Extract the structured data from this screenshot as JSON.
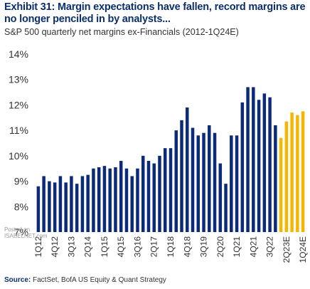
{
  "title": "Exhibit 31: Margin expectations have fallen, record margins are no longer penciled in by analysts...",
  "subtitle": "S&P 500 quarterly net margins ex-Financials (2012-1Q24E)",
  "source_label": "Source:",
  "source_text": "FactSet, BofA US Equity & Quant Strategy",
  "watermark": {
    "line1": "Posted on",
    "line2": "ISABELNET.com"
  },
  "colors": {
    "actual": "#0b2a7a",
    "estimate": "#f7b500",
    "title": "#0b2f6b"
  },
  "chart_data": {
    "type": "bar",
    "title": "S&P 500 quarterly net margins ex-Financials (2012-1Q24E)",
    "ylim": [
      7,
      14
    ],
    "yticks": [
      "7%",
      "8%",
      "9%",
      "10%",
      "11%",
      "12%",
      "13%",
      "14%"
    ],
    "ytick_values": [
      7,
      8,
      9,
      10,
      11,
      12,
      13,
      14
    ],
    "x_tick_labels": [
      "1Q12",
      "4Q12",
      "3Q13",
      "2Q14",
      "1Q15",
      "4Q15",
      "3Q16",
      "2Q17",
      "1Q18",
      "4Q18",
      "3Q19",
      "2Q20",
      "1Q21",
      "4Q21",
      "3Q22",
      "2Q23E",
      "1Q24E"
    ],
    "categories": [
      "1Q12",
      "2Q12",
      "3Q12",
      "4Q12",
      "1Q13",
      "2Q13",
      "3Q13",
      "4Q13",
      "1Q14",
      "2Q14",
      "3Q14",
      "4Q14",
      "1Q15",
      "2Q15",
      "3Q15",
      "4Q15",
      "1Q16",
      "2Q16",
      "3Q16",
      "4Q16",
      "1Q17",
      "2Q17",
      "3Q17",
      "4Q17",
      "1Q18",
      "2Q18",
      "3Q18",
      "4Q18",
      "1Q19",
      "2Q19",
      "3Q19",
      "4Q19",
      "1Q20",
      "2Q20",
      "3Q20",
      "4Q20",
      "1Q21",
      "2Q21",
      "3Q21",
      "4Q21",
      "1Q22",
      "2Q22",
      "3Q22",
      "4Q22",
      "1Q23E",
      "2Q23E",
      "3Q23E",
      "4Q23E",
      "1Q24E"
    ],
    "values": [
      8.8,
      9.2,
      9.0,
      8.95,
      9.2,
      8.95,
      9.2,
      8.9,
      9.2,
      9.25,
      9.5,
      9.55,
      9.6,
      9.5,
      9.55,
      9.8,
      9.5,
      9.2,
      9.5,
      10.0,
      9.8,
      9.7,
      10.0,
      10.3,
      10.3,
      11.0,
      11.4,
      11.9,
      11.1,
      10.8,
      10.9,
      11.2,
      10.9,
      9.7,
      8.9,
      10.8,
      10.8,
      12.1,
      12.7,
      12.7,
      12.2,
      12.45,
      12.3,
      11.2,
      10.7,
      11.35,
      11.7,
      11.6,
      11.75
    ],
    "series": [
      {
        "name": "Actual",
        "count": 44
      },
      {
        "name": "Estimate",
        "count": 5
      }
    ]
  }
}
